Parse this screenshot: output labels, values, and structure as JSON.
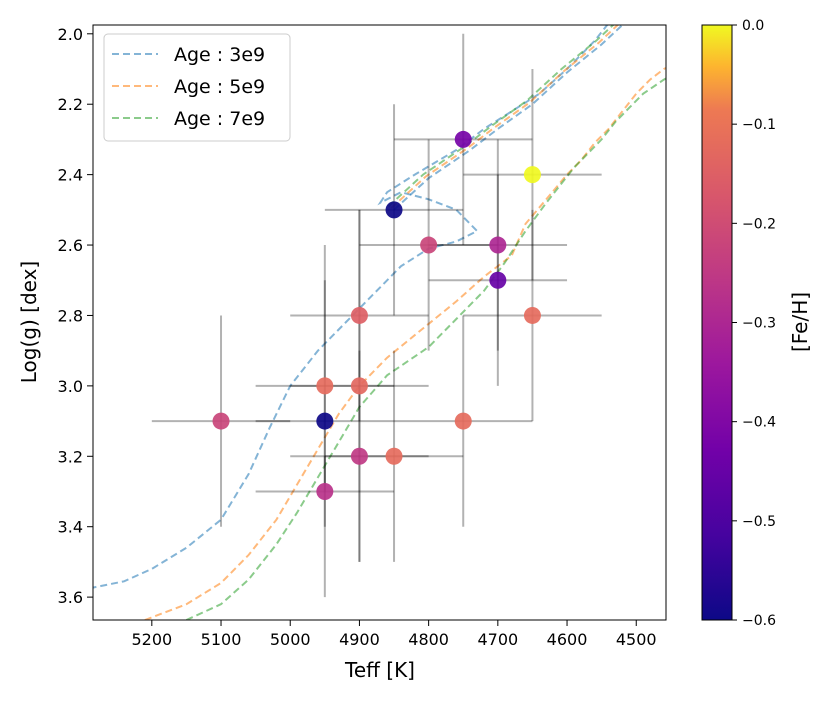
{
  "chart_data": {
    "type": "scatter",
    "title": "",
    "xlabel": "Teff [K]",
    "ylabel": "Log(g) [dex]",
    "xlim": [
      5285,
      4457
    ],
    "ylim": [
      3.665,
      1.975
    ],
    "x_ticks": [
      5200,
      5100,
      5000,
      4900,
      4800,
      4700,
      4600,
      4500
    ],
    "y_ticks": [
      2.0,
      2.2,
      2.4,
      2.6,
      2.8,
      3.0,
      3.2,
      3.4,
      3.6
    ],
    "x_tick_labels": [
      "5200",
      "5100",
      "5000",
      "4900",
      "4800",
      "4700",
      "4600",
      "4500"
    ],
    "y_tick_labels": [
      "2.0",
      "2.2",
      "2.4",
      "2.6",
      "2.8",
      "3.0",
      "3.2",
      "3.4",
      "3.6"
    ],
    "colorbar": {
      "label": "[Fe/H]",
      "range": [
        -0.6,
        0.0
      ],
      "ticks": [
        0.0,
        -0.1,
        -0.2,
        -0.3,
        -0.4,
        -0.5,
        -0.6
      ],
      "tick_labels": [
        "0.0",
        "−0.1",
        "−0.2",
        "−0.3",
        "−0.4",
        "−0.5",
        "−0.6"
      ],
      "colormap": "plasma"
    },
    "legend": {
      "position": "top-left",
      "entries": [
        "Age : 3e9",
        "Age : 5e9",
        "Age : 7e9"
      ]
    },
    "series": [
      {
        "name": "Age : 3e9",
        "color": "#1f77b4",
        "points": [
          [
            5290,
            3.575
          ],
          [
            5240,
            3.555
          ],
          [
            5200,
            3.52
          ],
          [
            5150,
            3.46
          ],
          [
            5100,
            3.38
          ],
          [
            5060,
            3.25
          ],
          [
            5030,
            3.12
          ],
          [
            5000,
            3.0
          ],
          [
            4960,
            2.9
          ],
          [
            4920,
            2.82
          ],
          [
            4880,
            2.74
          ],
          [
            4840,
            2.66
          ],
          [
            4800,
            2.61
          ],
          [
            4760,
            2.59
          ],
          [
            4740,
            2.57
          ],
          [
            4730,
            2.56
          ],
          [
            4760,
            2.5
          ],
          [
            4800,
            2.47
          ],
          [
            4840,
            2.45
          ],
          [
            4870,
            2.48
          ],
          [
            4860,
            2.45
          ],
          [
            4820,
            2.4
          ],
          [
            4760,
            2.33
          ],
          [
            4720,
            2.27
          ],
          [
            4680,
            2.22
          ],
          [
            4640,
            2.17
          ],
          [
            4600,
            2.1
          ],
          [
            4560,
            2.02
          ],
          [
            4540,
            1.97
          ]
        ]
      },
      {
        "name": "Age : 5e9",
        "color": "#ff7f0e",
        "points": [
          [
            5210,
            3.665
          ],
          [
            5150,
            3.62
          ],
          [
            5100,
            3.56
          ],
          [
            5060,
            3.48
          ],
          [
            5020,
            3.38
          ],
          [
            4990,
            3.28
          ],
          [
            4960,
            3.18
          ],
          [
            4930,
            3.08
          ],
          [
            4900,
            3.0
          ],
          [
            4860,
            2.92
          ],
          [
            4810,
            2.84
          ],
          [
            4760,
            2.76
          ],
          [
            4720,
            2.69
          ],
          [
            4680,
            2.63
          ],
          [
            4660,
            2.54
          ],
          [
            4630,
            2.47
          ],
          [
            4600,
            2.4
          ],
          [
            4580,
            2.36
          ],
          [
            4560,
            2.31
          ],
          [
            4540,
            2.27
          ],
          [
            4520,
            2.22
          ],
          [
            4500,
            2.17
          ],
          [
            4480,
            2.13
          ],
          [
            4460,
            2.1
          ],
          [
            4450,
            2.09
          ]
        ]
      },
      {
        "name": "Age : 7e9",
        "color": "#2ca02c",
        "points": [
          [
            5150,
            3.665
          ],
          [
            5100,
            3.62
          ],
          [
            5060,
            3.55
          ],
          [
            5020,
            3.45
          ],
          [
            4990,
            3.36
          ],
          [
            4960,
            3.26
          ],
          [
            4930,
            3.16
          ],
          [
            4900,
            3.06
          ],
          [
            4860,
            2.97
          ],
          [
            4800,
            2.89
          ],
          [
            4760,
            2.81
          ],
          [
            4720,
            2.73
          ],
          [
            4690,
            2.65
          ],
          [
            4660,
            2.56
          ],
          [
            4630,
            2.48
          ],
          [
            4610,
            2.43
          ],
          [
            4590,
            2.38
          ],
          [
            4570,
            2.34
          ],
          [
            4550,
            2.3
          ],
          [
            4530,
            2.25
          ],
          [
            4510,
            2.21
          ],
          [
            4490,
            2.17
          ],
          [
            4460,
            2.13
          ],
          [
            4450,
            2.12
          ]
        ]
      }
    ],
    "upper_branch": [
      [
        4850,
        2.5
      ],
      [
        4800,
        2.41
      ],
      [
        4740,
        2.33
      ],
      [
        4700,
        2.27
      ],
      [
        4650,
        2.2
      ],
      [
        4600,
        2.11
      ],
      [
        4550,
        2.03
      ],
      [
        4520,
        1.975
      ]
    ],
    "points": [
      {
        "teff": 5100,
        "logg": 3.1,
        "feh": -0.22,
        "xerr": 100,
        "yerr": 0.3
      },
      {
        "teff": 4950,
        "logg": 3.0,
        "feh": -0.12,
        "xerr": 100,
        "yerr": 0.3
      },
      {
        "teff": 4950,
        "logg": 3.1,
        "feh": -0.6,
        "xerr": 100,
        "yerr": 0.5
      },
      {
        "teff": 4950,
        "logg": 3.3,
        "feh": -0.27,
        "xerr": 100,
        "yerr": 0.1
      },
      {
        "teff": 4900,
        "logg": 2.8,
        "feh": -0.15,
        "xerr": 100,
        "yerr": 0.3
      },
      {
        "teff": 4900,
        "logg": 3.0,
        "feh": -0.13,
        "xerr": 100,
        "yerr": 0.5
      },
      {
        "teff": 4900,
        "logg": 3.2,
        "feh": -0.25,
        "xerr": 100,
        "yerr": 0.3
      },
      {
        "teff": 4850,
        "logg": 2.5,
        "feh": -0.6,
        "xerr": 100,
        "yerr": 0.3
      },
      {
        "teff": 4850,
        "logg": 3.2,
        "feh": -0.12,
        "xerr": 100,
        "yerr": 0.3
      },
      {
        "teff": 4800,
        "logg": 2.6,
        "feh": -0.22,
        "xerr": 100,
        "yerr": 0.3
      },
      {
        "teff": 4750,
        "logg": 2.3,
        "feh": -0.42,
        "xerr": 100,
        "yerr": 0.3
      },
      {
        "teff": 4750,
        "logg": 3.1,
        "feh": -0.12,
        "xerr": 100,
        "yerr": 0.3
      },
      {
        "teff": 4700,
        "logg": 2.6,
        "feh": -0.3,
        "xerr": 100,
        "yerr": 0.3
      },
      {
        "teff": 4700,
        "logg": 2.7,
        "feh": -0.45,
        "xerr": 100,
        "yerr": 0.3
      },
      {
        "teff": 4650,
        "logg": 2.4,
        "feh": -0.0,
        "xerr": 100,
        "yerr": 0.3
      },
      {
        "teff": 4650,
        "logg": 2.8,
        "feh": -0.12,
        "xerr": 100,
        "yerr": 0.3
      }
    ]
  }
}
